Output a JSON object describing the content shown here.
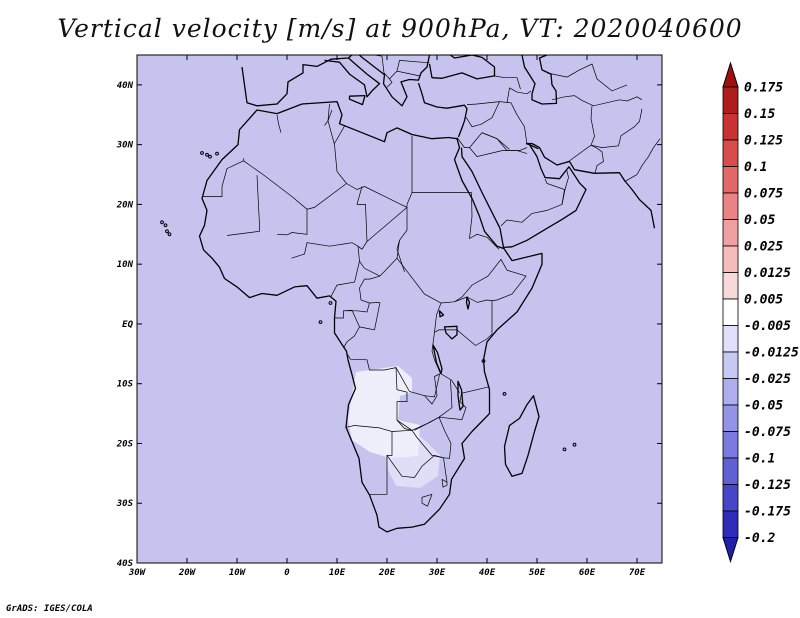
{
  "title": "Vertical velocity [m/s] at 900hPa, VT: 2020040600",
  "footer": "GrADS: IGES/COLA",
  "map": {
    "lon_range": [
      -30,
      75
    ],
    "lat_range": [
      -40,
      45
    ],
    "lon_ticks": [
      {
        "value": -30,
        "label": "30W"
      },
      {
        "value": -20,
        "label": "20W"
      },
      {
        "value": -10,
        "label": "10W"
      },
      {
        "value": 0,
        "label": "0"
      },
      {
        "value": 10,
        "label": "10E"
      },
      {
        "value": 20,
        "label": "20E"
      },
      {
        "value": 30,
        "label": "30E"
      },
      {
        "value": 40,
        "label": "40E"
      },
      {
        "value": 50,
        "label": "50E"
      },
      {
        "value": 60,
        "label": "60E"
      },
      {
        "value": 70,
        "label": "70E"
      }
    ],
    "lat_ticks": [
      {
        "value": 40,
        "label": "40N"
      },
      {
        "value": 30,
        "label": "30N"
      },
      {
        "value": 20,
        "label": "20N"
      },
      {
        "value": 10,
        "label": "10N"
      },
      {
        "value": 0,
        "label": "EQ"
      },
      {
        "value": -10,
        "label": "10S"
      },
      {
        "value": -20,
        "label": "20S"
      },
      {
        "value": -30,
        "label": "30S"
      },
      {
        "value": -40,
        "label": "40S"
      }
    ],
    "field": "vertical velocity 900hPa",
    "style": "shaded noisy field, red = positive, blue = negative"
  },
  "colorbar": {
    "orientation": "vertical, right side, triangular end caps",
    "labels": [
      "0.175",
      "0.15",
      "0.125",
      "0.1",
      "0.075",
      "0.05",
      "0.025",
      "0.0125",
      "0.005",
      "-0.005",
      "-0.0125",
      "-0.025",
      "-0.05",
      "-0.075",
      "-0.1",
      "-0.125",
      "-0.175",
      "-0.2"
    ],
    "colors": [
      "#b01c1c",
      "#c83232",
      "#d84c4c",
      "#e36868",
      "#eb8585",
      "#f0a0a0",
      "#f5bcbc",
      "#f9d8d8",
      "#ffffff",
      "#e0e0fa",
      "#c8c8f4",
      "#aeaeee",
      "#9494e6",
      "#7a7ade",
      "#6060d4",
      "#4646c8",
      "#2c2cb8"
    ],
    "top_cap_color": "#a01010",
    "bottom_cap_color": "#2020a8"
  }
}
